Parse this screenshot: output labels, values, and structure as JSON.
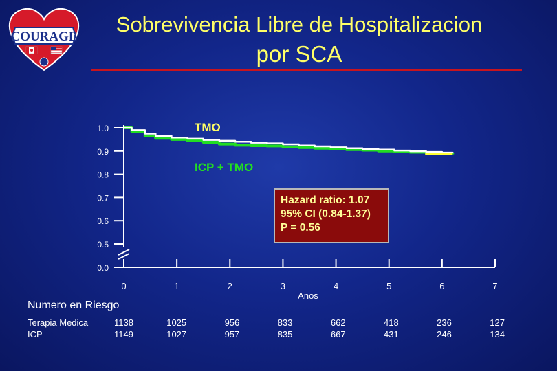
{
  "logo": {
    "text": "COURAGE"
  },
  "title": {
    "line1": "Sobrevivencia Libre de Hospitalizacion",
    "line2": "por SCA"
  },
  "colors": {
    "tmo": "#ffffff",
    "icp_tmo": "#22dd22",
    "title": "#ffff66",
    "accent_rule": "#c8141e"
  },
  "hazard_box": {
    "line1": "Hazard ratio: 1.07",
    "line2": "95% CI (0.84-1.37)",
    "line3": "P = 0.56"
  },
  "chart_data": {
    "type": "line",
    "title": "Sobrevivencia Libre de Hospitalizacion por SCA",
    "xlabel": "Anos",
    "ylabel": "",
    "xlim": [
      0,
      7
    ],
    "y_ticks": [
      "1.0",
      "0.9",
      "0.8",
      "0.7",
      "0.6",
      "0.5",
      "0.0"
    ],
    "y_tick_values": [
      1.0,
      0.9,
      0.8,
      0.7,
      0.6,
      0.5,
      0.0
    ],
    "x_ticks": [
      "0",
      "1",
      "2",
      "3",
      "4",
      "5",
      "6",
      "7"
    ],
    "axis_break": true,
    "series": [
      {
        "name": "TMO",
        "x": [
          0,
          0.15,
          0.4,
          0.6,
          0.9,
          1.2,
          1.5,
          1.8,
          2.1,
          2.4,
          2.7,
          3.0,
          3.3,
          3.6,
          3.9,
          4.2,
          4.5,
          4.8,
          5.1,
          5.4,
          5.7,
          6.0,
          6.2
        ],
        "y": [
          1.0,
          0.99,
          0.975,
          0.965,
          0.958,
          0.953,
          0.948,
          0.944,
          0.94,
          0.936,
          0.933,
          0.929,
          0.924,
          0.92,
          0.916,
          0.912,
          0.909,
          0.906,
          0.902,
          0.899,
          0.896,
          0.893,
          0.89
        ]
      },
      {
        "name": "ICP + TMO",
        "x": [
          0,
          0.15,
          0.4,
          0.6,
          0.9,
          1.2,
          1.5,
          1.8,
          2.1,
          2.4,
          2.7,
          3.0,
          3.3,
          3.6,
          3.9,
          4.2,
          4.5,
          4.8,
          5.1,
          5.4,
          5.7,
          6.0,
          6.2
        ],
        "y": [
          1.0,
          0.985,
          0.965,
          0.955,
          0.95,
          0.945,
          0.938,
          0.93,
          0.925,
          0.923,
          0.922,
          0.918,
          0.915,
          0.912,
          0.909,
          0.906,
          0.904,
          0.9,
          0.898,
          0.895,
          0.892,
          0.889,
          0.886
        ]
      }
    ]
  },
  "risk_table": {
    "title": "Numero en Riesgo",
    "rows": [
      {
        "label": "Terapia Medica",
        "values": [
          "1138",
          "1025",
          "956",
          "833",
          "662",
          "418",
          "236",
          "127"
        ]
      },
      {
        "label": "ICP",
        "values": [
          "1149",
          "1027",
          "957",
          "835",
          "667",
          "431",
          "246",
          "134"
        ]
      }
    ]
  }
}
